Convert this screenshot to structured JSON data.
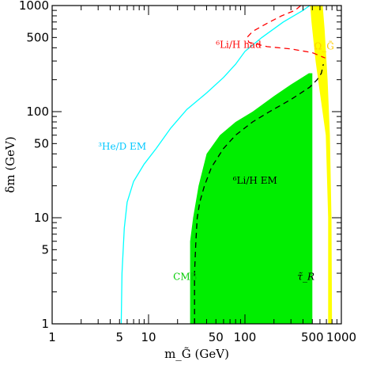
{
  "chart_data": {
    "type": "area",
    "xscale": "log",
    "yscale": "log",
    "xlim": [
      1,
      1000
    ],
    "ylim": [
      1,
      1000
    ],
    "xlabel": "m_G̃ (GeV)",
    "ylabel": "δm (GeV)",
    "grid": false,
    "x_ticks": [
      {
        "v": 1,
        "label": "1"
      },
      {
        "v": 5,
        "label": "5"
      },
      {
        "v": 10,
        "label": "10"
      },
      {
        "v": 50,
        "label": "50"
      },
      {
        "v": 100,
        "label": "100"
      },
      {
        "v": 500,
        "label": "500"
      },
      {
        "v": 1000,
        "label": "1000"
      }
    ],
    "y_ticks": [
      {
        "v": 1,
        "label": "1"
      },
      {
        "v": 5,
        "label": "5"
      },
      {
        "v": 10,
        "label": "10"
      },
      {
        "v": 50,
        "label": "50"
      },
      {
        "v": 100,
        "label": "100"
      },
      {
        "v": 500,
        "label": "500"
      },
      {
        "v": 1000,
        "label": "1000"
      }
    ],
    "regions": [
      {
        "label": "CMB",
        "color": "#00ee00",
        "points": [
          [
            27,
            1
          ],
          [
            27,
            6
          ],
          [
            29,
            10
          ],
          [
            33,
            20
          ],
          [
            40,
            40
          ],
          [
            55,
            60
          ],
          [
            80,
            80
          ],
          [
            120,
            100
          ],
          [
            200,
            140
          ],
          [
            300,
            180
          ],
          [
            460,
            230
          ],
          [
            500,
            230
          ],
          [
            500,
            1
          ]
        ]
      },
      {
        "label": "Ω_G̃",
        "color": "#ffff00",
        "points": [
          [
            475,
            1000
          ],
          [
            640,
            1000
          ],
          [
            670,
            600
          ],
          [
            720,
            200
          ],
          [
            760,
            60
          ],
          [
            790,
            10
          ],
          [
            800,
            1
          ],
          [
            730,
            1
          ],
          [
            730,
            10
          ],
          [
            690,
            60
          ],
          [
            600,
            150
          ],
          [
            540,
            300
          ],
          [
            490,
            700
          ]
        ]
      }
    ],
    "curves": [
      {
        "label": "³He/D EM",
        "color": "#00ffff",
        "style": "solid",
        "points": [
          [
            5.2,
            1
          ],
          [
            5.3,
            3
          ],
          [
            5.6,
            8
          ],
          [
            6,
            14
          ],
          [
            7,
            22
          ],
          [
            9,
            32
          ],
          [
            12,
            45
          ],
          [
            17,
            70
          ],
          [
            25,
            105
          ],
          [
            40,
            150
          ],
          [
            60,
            210
          ],
          [
            80,
            280
          ],
          [
            100,
            370
          ],
          [
            150,
            500
          ],
          [
            250,
            700
          ],
          [
            400,
            900
          ],
          [
            470,
            1000
          ]
        ]
      },
      {
        "label": "⁶Li/H EM",
        "color": "#000000",
        "style": "dashed",
        "points": [
          [
            30,
            1
          ],
          [
            30,
            3
          ],
          [
            31,
            6
          ],
          [
            32,
            10
          ],
          [
            34,
            14
          ],
          [
            38,
            20
          ],
          [
            45,
            30
          ],
          [
            60,
            45
          ],
          [
            80,
            60
          ],
          [
            120,
            80
          ],
          [
            180,
            100
          ],
          [
            300,
            130
          ],
          [
            470,
            170
          ],
          [
            560,
            200
          ],
          [
            620,
            230
          ],
          [
            650,
            280
          ]
        ]
      },
      {
        "label": "⁶Li/H had",
        "color": "#ff0000",
        "style": "dashed",
        "points": [
          [
            380,
            1000
          ],
          [
            330,
            900
          ],
          [
            240,
            800
          ],
          [
            170,
            680
          ],
          [
            120,
            570
          ],
          [
            105,
            500
          ],
          [
            110,
            450
          ],
          [
            170,
            410
          ],
          [
            300,
            390
          ],
          [
            500,
            360
          ],
          [
            680,
            320
          ]
        ]
      }
    ],
    "annotations": [
      {
        "id": "li-had",
        "text": "⁶Li/H had",
        "color": "#ff0000",
        "x": 50,
        "y": 400
      },
      {
        "id": "he-d",
        "text": "³He/D EM",
        "color": "#00c8ff",
        "x": 3,
        "y": 44
      },
      {
        "id": "li-em",
        "text": "⁶Li/H EM",
        "color": "#000000",
        "x": 75,
        "y": 21
      },
      {
        "id": "cmb",
        "text": "CMB",
        "color": "#00cc00",
        "x": 18,
        "y": 2.6
      },
      {
        "id": "omega",
        "text": "Ω_G̃",
        "color": "#ffcc00",
        "x": 520,
        "y": 385
      },
      {
        "id": "tau",
        "text": "τ̃_R",
        "color": "#000000",
        "x": 350,
        "y": 2.6
      }
    ]
  }
}
